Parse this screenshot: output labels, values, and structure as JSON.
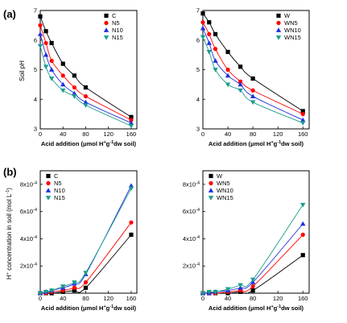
{
  "panel_labels": [
    "(a)",
    "(b)"
  ],
  "ylabels": [
    "Soil pH",
    "H+ concentration in soil (mol L-1)"
  ],
  "xlabel": "Acid addition (μmol H+g-1dw soil)",
  "colors": {
    "black": "#000000",
    "red": "#ff0000",
    "blue": "#1f2fe0",
    "cyan": "#1b9c8c"
  },
  "chart_data": [
    {
      "type": "scatter",
      "x": [
        0,
        10,
        20,
        40,
        60,
        80,
        160
      ],
      "xticks": [
        "0",
        "40",
        "80",
        "120",
        "160"
      ],
      "yticks": [
        "3",
        "4",
        "5",
        "6",
        "7"
      ],
      "xlim": [
        0,
        170
      ],
      "ylim": [
        3,
        7
      ],
      "legend_position": "top-right",
      "series": [
        {
          "name": "C",
          "color": "black",
          "marker": "square",
          "values": [
            6.8,
            6.3,
            5.9,
            5.2,
            4.8,
            4.4,
            3.4
          ]
        },
        {
          "name": "N5",
          "color": "red",
          "marker": "circle",
          "values": [
            6.5,
            5.9,
            5.3,
            4.8,
            4.4,
            4.1,
            3.3
          ]
        },
        {
          "name": "N10",
          "color": "blue",
          "marker": "triangle",
          "values": [
            6.2,
            5.5,
            5.0,
            4.5,
            4.2,
            3.9,
            3.2
          ]
        },
        {
          "name": "N15",
          "color": "cyan",
          "marker": "tridown",
          "values": [
            5.8,
            5.1,
            4.7,
            4.3,
            4.1,
            3.8,
            3.1
          ]
        }
      ]
    },
    {
      "type": "scatter",
      "x": [
        0,
        10,
        20,
        40,
        60,
        80,
        160
      ],
      "xticks": [
        "0",
        "40",
        "80",
        "120",
        "160"
      ],
      "yticks": [
        "3",
        "4",
        "5",
        "6",
        "7"
      ],
      "xlim": [
        0,
        170
      ],
      "ylim": [
        3,
        7
      ],
      "legend_position": "top-right",
      "series": [
        {
          "name": "W",
          "color": "black",
          "marker": "square",
          "values": [
            6.9,
            6.6,
            6.2,
            5.6,
            5.1,
            4.7,
            3.6
          ]
        },
        {
          "name": "WN5",
          "color": "red",
          "marker": "circle",
          "values": [
            6.6,
            6.2,
            5.7,
            5.0,
            4.6,
            4.3,
            3.5
          ]
        },
        {
          "name": "WN10",
          "color": "blue",
          "marker": "triangle",
          "values": [
            6.4,
            5.9,
            5.3,
            4.8,
            4.5,
            4.1,
            3.3
          ]
        },
        {
          "name": "WN15",
          "color": "cyan",
          "marker": "tridown",
          "values": [
            6.1,
            5.6,
            5.0,
            4.5,
            4.3,
            3.9,
            3.2
          ]
        }
      ]
    },
    {
      "type": "scatter",
      "x": [
        0,
        10,
        20,
        40,
        60,
        80,
        160
      ],
      "xticks": [
        "0",
        "40",
        "80",
        "120",
        "160"
      ],
      "yticks": [
        "2x10-4",
        "4x10-4",
        "6x10-4",
        "8x10-4"
      ],
      "ytick_values": [
        0.0002,
        0.0004,
        0.0006,
        0.0008
      ],
      "xlim": [
        0,
        170
      ],
      "ylim": [
        0,
        0.0009
      ],
      "legend_position": "top-left",
      "series": [
        {
          "name": "C",
          "color": "black",
          "marker": "square",
          "values": [
            0.0,
            0.0,
            0.0,
            1e-05,
            2e-05,
            4e-05,
            0.00043
          ]
        },
        {
          "name": "N5",
          "color": "red",
          "marker": "circle",
          "values": [
            0.0,
            0.0,
            1e-05,
            2e-05,
            4e-05,
            8e-05,
            0.00052
          ]
        },
        {
          "name": "N10",
          "color": "blue",
          "marker": "triangle",
          "values": [
            0.0,
            1e-05,
            2e-05,
            4e-05,
            7e-05,
            0.00014,
            0.00079
          ]
        },
        {
          "name": "N15",
          "color": "cyan",
          "marker": "tridown",
          "values": [
            0.0,
            1e-05,
            2e-05,
            5e-05,
            8e-05,
            0.00015,
            0.00077
          ]
        }
      ]
    },
    {
      "type": "scatter",
      "x": [
        0,
        10,
        20,
        40,
        60,
        80,
        160
      ],
      "xticks": [
        "0",
        "40",
        "80",
        "120",
        "160"
      ],
      "yticks": [
        "2x10-4",
        "4x10-4",
        "6x10-4",
        "8x10-4"
      ],
      "ytick_values": [
        0.0002,
        0.0004,
        0.0006,
        0.0008
      ],
      "xlim": [
        0,
        170
      ],
      "ylim": [
        0,
        0.0009
      ],
      "legend_position": "top-left",
      "series": [
        {
          "name": "W",
          "color": "black",
          "marker": "square",
          "values": [
            0.0,
            0.0,
            0.0,
            0.0,
            1e-05,
            2e-05,
            0.00028
          ]
        },
        {
          "name": "WN5",
          "color": "red",
          "marker": "circle",
          "values": [
            0.0,
            0.0,
            0.0,
            1e-05,
            2e-05,
            5e-05,
            0.00043
          ]
        },
        {
          "name": "WN10",
          "color": "blue",
          "marker": "triangle",
          "values": [
            0.0,
            0.0,
            1e-05,
            2e-05,
            4e-05,
            8e-05,
            0.00051
          ]
        },
        {
          "name": "WN15",
          "color": "cyan",
          "marker": "tridown",
          "values": [
            0.0,
            1e-05,
            1e-05,
            3e-05,
            6e-05,
            0.0001,
            0.00065
          ]
        }
      ]
    }
  ]
}
